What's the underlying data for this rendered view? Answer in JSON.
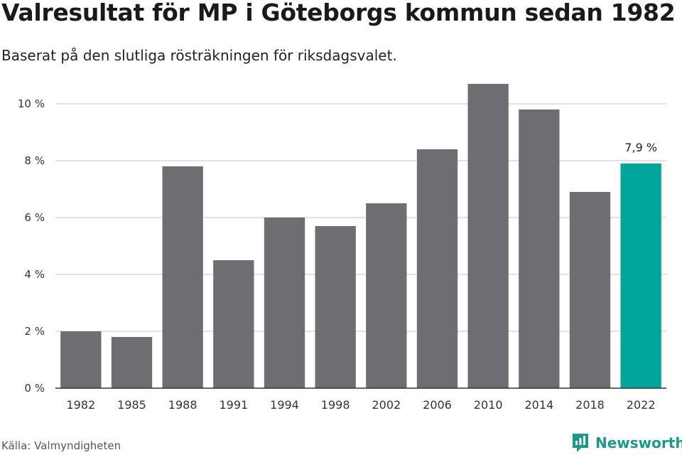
{
  "header": {
    "title": "Valresultat för MP i Göteborgs kommun sedan 1982",
    "subtitle": "Baserat på den slutliga rösträkningen för riksdagsvalet."
  },
  "footer": {
    "source": "Källa: Valmyndigheten",
    "brand": "Newsworthy"
  },
  "colors": {
    "bar": "#6e6d72",
    "highlight": "#00a59b",
    "grid": "#d9d9d9",
    "axis": "#333333",
    "brand": "#1b998b"
  },
  "chart_data": {
    "type": "bar",
    "categories": [
      "1982",
      "1985",
      "1988",
      "1991",
      "1994",
      "1998",
      "2002",
      "2006",
      "2010",
      "2014",
      "2018",
      "2022"
    ],
    "values": [
      2.0,
      1.8,
      7.8,
      4.5,
      6.0,
      5.7,
      6.5,
      8.4,
      10.7,
      9.8,
      6.9,
      7.9
    ],
    "unit": "%",
    "ylim": [
      0,
      10.9
    ],
    "yticks": [
      {
        "value": 0,
        "label": "0 %"
      },
      {
        "value": 2,
        "label": "2 %"
      },
      {
        "value": 4,
        "label": "4 %"
      },
      {
        "value": 6,
        "label": "6 %"
      },
      {
        "value": 8,
        "label": "8 %"
      },
      {
        "value": 10,
        "label": "10 %"
      }
    ],
    "grid": true,
    "highlight_index": 11,
    "annotations": [
      {
        "category": "2022",
        "label": "7,9 %"
      }
    ]
  }
}
